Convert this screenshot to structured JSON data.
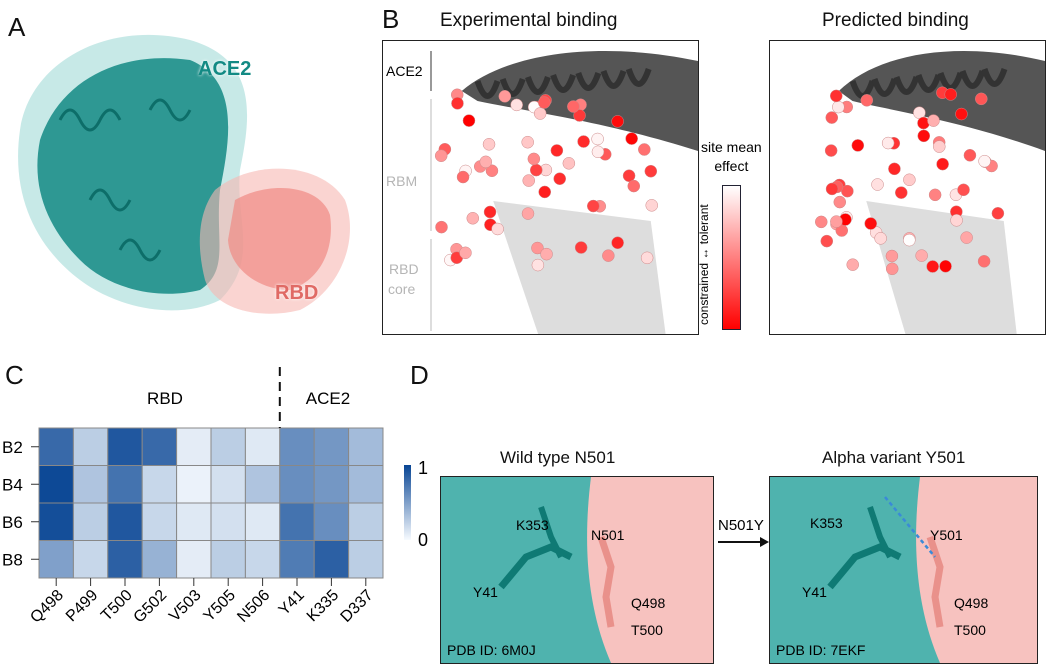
{
  "panels": {
    "A": {
      "label": "A",
      "ace2_label": "ACE2",
      "rbd_label": "RBD"
    },
    "B": {
      "label": "B",
      "left_title": "Experimental binding",
      "right_title": "Predicted binding",
      "region_labels": [
        "ACE2",
        "RBM",
        "RBD",
        "core"
      ],
      "colorbar": {
        "title_line1": "site mean",
        "title_line2": "effect",
        "axis_label": "constrained ↔ tolerant",
        "low_color": "#ff0000",
        "high_color": "#ffffff"
      }
    },
    "C": {
      "label": "C"
    },
    "D": {
      "label": "D",
      "left_title": "Wild type N501",
      "right_title": "Alpha variant Y501",
      "arrow_label": "N501Y",
      "left_residues": [
        "K353",
        "N501",
        "Y41",
        "Q498",
        "T500"
      ],
      "right_residues": [
        "K353",
        "Y501",
        "Y41",
        "Q498",
        "T500"
      ],
      "left_pdb": "PDB ID: 6M0J",
      "right_pdb": "PDB ID: 7EKF"
    }
  },
  "chart_data": {
    "type": "heatmap",
    "group_labels": [
      "RBD",
      "ACE2"
    ],
    "columns": [
      "Q498",
      "P499",
      "T500",
      "G502",
      "V503",
      "Y505",
      "N506",
      "Y41",
      "K335",
      "D337"
    ],
    "rows": [
      "B2",
      "B4",
      "B6",
      "B8"
    ],
    "values": [
      [
        0.8,
        0.25,
        0.9,
        0.8,
        0.08,
        0.25,
        0.1,
        0.6,
        0.55,
        0.35
      ],
      [
        0.98,
        0.3,
        0.75,
        0.2,
        0.05,
        0.15,
        0.3,
        0.6,
        0.55,
        0.35
      ],
      [
        0.95,
        0.25,
        0.9,
        0.2,
        0.1,
        0.15,
        0.1,
        0.75,
        0.6,
        0.25
      ],
      [
        0.5,
        0.2,
        0.85,
        0.4,
        0.08,
        0.25,
        0.2,
        0.7,
        0.85,
        0.25
      ]
    ],
    "colorbar": {
      "min": 0,
      "max": 1,
      "ticks": [
        "0",
        "1"
      ],
      "colormap": "Blues"
    }
  }
}
